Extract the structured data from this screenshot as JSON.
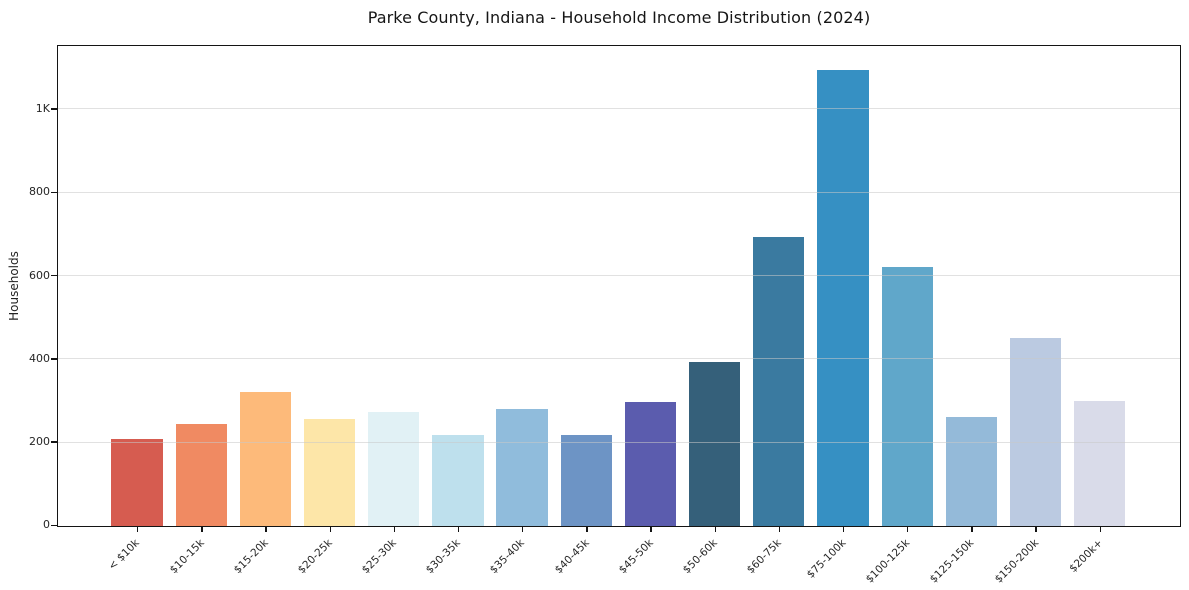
{
  "chart_data": {
    "type": "bar",
    "title": "Parke County, Indiana - Household Income Distribution (2024)",
    "xlabel": "",
    "ylabel": "Households",
    "categories": [
      "< $10k",
      "$10-15k",
      "$15-20k",
      "$20-25k",
      "$25-30k",
      "$30-35k",
      "$35-40k",
      "$40-45k",
      "$45-50k",
      "$50-60k",
      "$60-75k",
      "$75-100k",
      "$100-125k",
      "$125-150k",
      "$150-200k",
      "$200k+"
    ],
    "values": [
      209,
      245,
      322,
      258,
      273,
      218,
      281,
      219,
      297,
      395,
      694,
      1095,
      623,
      263,
      451,
      300
    ],
    "bar_colors": [
      "#d65c50",
      "#f08a62",
      "#fdba7a",
      "#fde6a8",
      "#e1f1f5",
      "#bee0ed",
      "#90bcdc",
      "#6d94c5",
      "#5b5cae",
      "#35607a",
      "#3a7aa0",
      "#3690c3",
      "#60a7ca",
      "#94bad9",
      "#bbcae1",
      "#d9dbe9"
    ],
    "ylim": [
      0,
      1150
    ],
    "yticks": [
      {
        "value": 0,
        "label": "0"
      },
      {
        "value": 200,
        "label": "200"
      },
      {
        "value": 400,
        "label": "400"
      },
      {
        "value": 600,
        "label": "600"
      },
      {
        "value": 800,
        "label": "800"
      },
      {
        "value": 1000,
        "label": "1K"
      }
    ],
    "grid": "horizontal-only",
    "legend": "none",
    "plot_border": "full-box"
  }
}
